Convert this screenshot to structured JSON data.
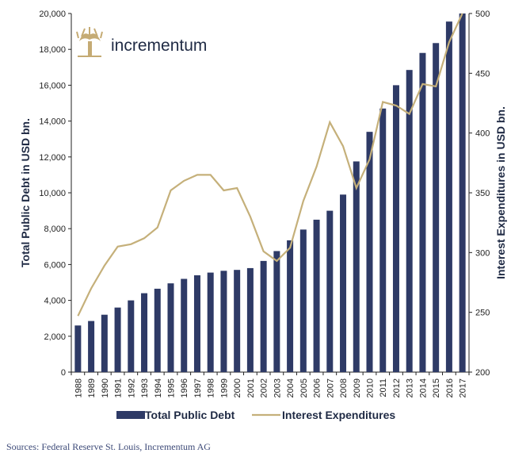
{
  "logo": {
    "text": "incrementum"
  },
  "source": "Sources: Federal Reserve St. Louis, Incrementum AG",
  "colors": {
    "bar": "#2e3a66",
    "line": "#c5b07a",
    "axis": "#222222",
    "text": "#1f2a44",
    "logo_gold": "#c5ab74"
  },
  "chart_data": {
    "type": "bar",
    "categories": [
      "1988",
      "1989",
      "1990",
      "1991",
      "1992",
      "1993",
      "1994",
      "1995",
      "1996",
      "1997",
      "1998",
      "1999",
      "2000",
      "2001",
      "2002",
      "2003",
      "2004",
      "2005",
      "2006",
      "2007",
      "2008",
      "2009",
      "2010",
      "2011",
      "2012",
      "2013",
      "2014",
      "2015",
      "2016",
      "2017"
    ],
    "series": [
      {
        "name": "Total Public Debt",
        "type": "bar",
        "axis": "left",
        "values": [
          2600,
          2850,
          3200,
          3600,
          4000,
          4400,
          4650,
          4950,
          5200,
          5400,
          5550,
          5650,
          5700,
          5800,
          6200,
          6750,
          7350,
          7950,
          8500,
          9000,
          9900,
          11750,
          13400,
          14700,
          16000,
          16850,
          17800,
          18350,
          19550,
          20050
        ]
      },
      {
        "name": "Interest Expenditures",
        "type": "line",
        "axis": "right",
        "values": [
          247,
          270,
          289,
          305,
          307,
          312,
          321,
          352,
          360,
          365,
          365,
          352,
          354,
          330,
          301,
          293,
          304,
          343,
          372,
          409,
          389,
          354,
          378,
          426,
          423,
          416,
          441,
          439,
          476,
          502
        ]
      }
    ],
    "yleft": {
      "label": "Total Public Debt in USD bn.",
      "lim": [
        0,
        20000
      ],
      "ticks": [
        "0",
        "2,000",
        "4,000",
        "6,000",
        "8,000",
        "10,000",
        "12,000",
        "14,000",
        "16,000",
        "18,000",
        "20,000"
      ]
    },
    "yright": {
      "label": "Interest Expenditures in USD bn.",
      "lim": [
        200,
        500
      ],
      "ticks": [
        "200",
        "250",
        "300",
        "350",
        "400",
        "450",
        "500"
      ]
    },
    "legend": {
      "position": "bottom",
      "entries": [
        "Total Public Debt",
        "Interest Expenditures"
      ]
    },
    "grid": false
  }
}
